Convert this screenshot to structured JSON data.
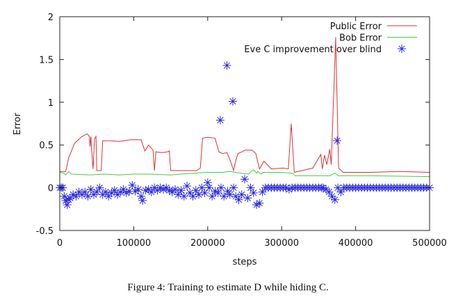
{
  "caption": "Figure 4: Training to estimate D while hiding C.",
  "chart_data": {
    "type": "line",
    "title": "",
    "xlabel": "steps",
    "ylabel": "Error",
    "xlim": [
      0,
      500000
    ],
    "ylim": [
      -0.5,
      2
    ],
    "xticks": [
      "0",
      "100000",
      "200000",
      "300000",
      "400000",
      "500000"
    ],
    "yticks": [
      "-0.5",
      "0",
      "0.5",
      "1",
      "1.5",
      "2"
    ],
    "xtick_values": [
      0,
      100000,
      200000,
      300000,
      400000,
      500000
    ],
    "ytick_values": [
      -0.5,
      0,
      0.5,
      1,
      1.5,
      2
    ],
    "grid": false,
    "legend_position": "top-right",
    "series": [
      {
        "name": "Public Error",
        "style": "line",
        "color": "#e03030",
        "points": [
          [
            0,
            0.19
          ],
          [
            8000,
            0.19
          ],
          [
            12000,
            0.35
          ],
          [
            20000,
            0.52
          ],
          [
            30000,
            0.6
          ],
          [
            37000,
            0.63
          ],
          [
            40000,
            0.6
          ],
          [
            41000,
            0.48
          ],
          [
            42000,
            0.6
          ],
          [
            43000,
            0.45
          ],
          [
            45000,
            0.22
          ],
          [
            47000,
            0.57
          ],
          [
            49000,
            0.6
          ],
          [
            50000,
            0.2
          ],
          [
            56000,
            0.2
          ],
          [
            58000,
            0.55
          ],
          [
            70000,
            0.55
          ],
          [
            80000,
            0.54
          ],
          [
            95000,
            0.56
          ],
          [
            110000,
            0.56
          ],
          [
            115000,
            0.43
          ],
          [
            120000,
            0.5
          ],
          [
            126000,
            0.44
          ],
          [
            128000,
            0.2
          ],
          [
            130000,
            0.42
          ],
          [
            138000,
            0.41
          ],
          [
            146000,
            0.42
          ],
          [
            148000,
            0.43
          ],
          [
            150000,
            0.2
          ],
          [
            185000,
            0.2
          ],
          [
            190000,
            0.23
          ],
          [
            193000,
            0.58
          ],
          [
            200000,
            0.59
          ],
          [
            210000,
            0.58
          ],
          [
            215000,
            0.42
          ],
          [
            220000,
            0.4
          ],
          [
            226000,
            0.41
          ],
          [
            230000,
            0.33
          ],
          [
            235000,
            0.2
          ],
          [
            238000,
            0.32
          ],
          [
            241000,
            0.4
          ],
          [
            251000,
            0.44
          ],
          [
            260000,
            0.44
          ],
          [
            265000,
            0.4
          ],
          [
            270000,
            0.22
          ],
          [
            276000,
            0.31
          ],
          [
            286000,
            0.22
          ],
          [
            302000,
            0.23
          ],
          [
            309000,
            0.22
          ],
          [
            313000,
            0.75
          ],
          [
            317000,
            0.18
          ],
          [
            342000,
            0.23
          ],
          [
            353000,
            0.39
          ],
          [
            355000,
            0.22
          ],
          [
            358000,
            0.38
          ],
          [
            361000,
            0.27
          ],
          [
            365000,
            0.45
          ],
          [
            367000,
            0.27
          ],
          [
            373000,
            1.76
          ],
          [
            377000,
            0.23
          ],
          [
            383000,
            0.18
          ],
          [
            420000,
            0.18
          ],
          [
            460000,
            0.19
          ],
          [
            500000,
            0.18
          ]
        ]
      },
      {
        "name": "Bob Error",
        "style": "line",
        "color": "#40d040",
        "points": [
          [
            0,
            0.18
          ],
          [
            6000,
            0.17
          ],
          [
            8000,
            0.15
          ],
          [
            12000,
            0.19
          ],
          [
            16000,
            0.16
          ],
          [
            40000,
            0.15
          ],
          [
            60000,
            0.16
          ],
          [
            80000,
            0.15
          ],
          [
            100000,
            0.16
          ],
          [
            120000,
            0.16
          ],
          [
            150000,
            0.15
          ],
          [
            180000,
            0.17
          ],
          [
            200000,
            0.18
          ],
          [
            220000,
            0.18
          ],
          [
            230000,
            0.19
          ],
          [
            245000,
            0.17
          ],
          [
            255000,
            0.16
          ],
          [
            262000,
            0.21
          ],
          [
            266000,
            0.17
          ],
          [
            268000,
            0.19
          ],
          [
            272000,
            0.16
          ],
          [
            275000,
            0.18
          ],
          [
            300000,
            0.18
          ],
          [
            315000,
            0.17
          ],
          [
            318000,
            0.14
          ],
          [
            365000,
            0.14
          ],
          [
            372000,
            0.17
          ],
          [
            377000,
            0.14
          ],
          [
            420000,
            0.14
          ],
          [
            500000,
            0.13
          ]
        ]
      },
      {
        "name": "Eve C improvement over blind",
        "style": "markers",
        "marker": "asterisk",
        "color": "#2a2ae0",
        "points": [
          [
            0,
            0
          ],
          [
            2000,
            0
          ],
          [
            4000,
            0
          ],
          [
            6000,
            -0.1
          ],
          [
            8000,
            -0.15
          ],
          [
            10000,
            -0.2
          ],
          [
            12000,
            -0.14
          ],
          [
            14000,
            -0.12
          ],
          [
            18000,
            -0.08
          ],
          [
            22000,
            -0.1
          ],
          [
            26000,
            -0.05
          ],
          [
            30000,
            -0.08
          ],
          [
            34000,
            -0.05
          ],
          [
            38000,
            -0.1
          ],
          [
            42000,
            -0.02
          ],
          [
            46000,
            -0.08
          ],
          [
            50000,
            -0.05
          ],
          [
            54000,
            0
          ],
          [
            58000,
            -0.08
          ],
          [
            62000,
            -0.05
          ],
          [
            66000,
            -0.1
          ],
          [
            70000,
            -0.06
          ],
          [
            74000,
            -0.03
          ],
          [
            78000,
            -0.08
          ],
          [
            82000,
            -0.05
          ],
          [
            86000,
            -0.02
          ],
          [
            90000,
            -0.06
          ],
          [
            94000,
            -0.04
          ],
          [
            98000,
            0.03
          ],
          [
            102000,
            -0.04
          ],
          [
            106000,
            -0.02
          ],
          [
            110000,
            -0.1
          ],
          [
            112000,
            -0.15
          ],
          [
            116000,
            -0.03
          ],
          [
            120000,
            -0.02
          ],
          [
            124000,
            -0.05
          ],
          [
            128000,
            0
          ],
          [
            132000,
            -0.03
          ],
          [
            136000,
            0
          ],
          [
            140000,
            -0.02
          ],
          [
            144000,
            0
          ],
          [
            148000,
            -0.03
          ],
          [
            152000,
            -0.05
          ],
          [
            156000,
            -0.02
          ],
          [
            160000,
            -0.08
          ],
          [
            164000,
            -0.03
          ],
          [
            168000,
            -0.1
          ],
          [
            172000,
            0.02
          ],
          [
            176000,
            -0.06
          ],
          [
            180000,
            -0.1
          ],
          [
            184000,
            -0.03
          ],
          [
            188000,
            -0.08
          ],
          [
            192000,
            0
          ],
          [
            196000,
            -0.06
          ],
          [
            200000,
            0.06
          ],
          [
            202000,
            0
          ],
          [
            206000,
            -0.1
          ],
          [
            210000,
            -0.04
          ],
          [
            214000,
            -0.06
          ],
          [
            217000,
            0.79
          ],
          [
            218000,
            0
          ],
          [
            222000,
            -0.1
          ],
          [
            226000,
            1.43
          ],
          [
            227000,
            -0.04
          ],
          [
            230000,
            -0.08
          ],
          [
            234000,
            1.01
          ],
          [
            235000,
            0
          ],
          [
            238000,
            -0.1
          ],
          [
            242000,
            -0.14
          ],
          [
            246000,
            -0.08
          ],
          [
            250000,
            0.1
          ],
          [
            254000,
            -0.12
          ],
          [
            258000,
            0
          ],
          [
            262000,
            -0.06
          ],
          [
            266000,
            -0.2
          ],
          [
            270000,
            -0.18
          ],
          [
            274000,
            -0.05
          ],
          [
            278000,
            0
          ],
          [
            282000,
            0
          ],
          [
            286000,
            0
          ],
          [
            290000,
            0
          ],
          [
            294000,
            0
          ],
          [
            298000,
            0
          ],
          [
            302000,
            0
          ],
          [
            306000,
            0
          ],
          [
            310000,
            -0.02
          ],
          [
            314000,
            0
          ],
          [
            318000,
            0
          ],
          [
            322000,
            0
          ],
          [
            326000,
            0
          ],
          [
            330000,
            0
          ],
          [
            334000,
            0
          ],
          [
            338000,
            0
          ],
          [
            342000,
            0
          ],
          [
            346000,
            0
          ],
          [
            350000,
            0
          ],
          [
            354000,
            0
          ],
          [
            356000,
            0
          ],
          [
            360000,
            -0.02
          ],
          [
            364000,
            -0.05
          ],
          [
            368000,
            -0.1
          ],
          [
            372000,
            -0.14
          ],
          [
            375000,
            0.55
          ],
          [
            376000,
            0
          ],
          [
            380000,
            -0.05
          ],
          [
            384000,
            0
          ],
          [
            388000,
            0
          ],
          [
            392000,
            0
          ],
          [
            396000,
            0
          ],
          [
            400000,
            0
          ],
          [
            404000,
            0
          ],
          [
            408000,
            0
          ],
          [
            412000,
            0
          ],
          [
            416000,
            0
          ],
          [
            420000,
            0
          ],
          [
            424000,
            0
          ],
          [
            428000,
            0
          ],
          [
            432000,
            0
          ],
          [
            436000,
            0
          ],
          [
            440000,
            0
          ],
          [
            444000,
            0
          ],
          [
            448000,
            0
          ],
          [
            452000,
            0
          ],
          [
            456000,
            0
          ],
          [
            460000,
            0
          ],
          [
            464000,
            0
          ],
          [
            468000,
            0
          ],
          [
            472000,
            0
          ],
          [
            476000,
            0
          ],
          [
            480000,
            0
          ],
          [
            484000,
            0
          ],
          [
            488000,
            0
          ],
          [
            492000,
            0
          ],
          [
            496000,
            0
          ],
          [
            500000,
            0
          ]
        ]
      }
    ]
  }
}
